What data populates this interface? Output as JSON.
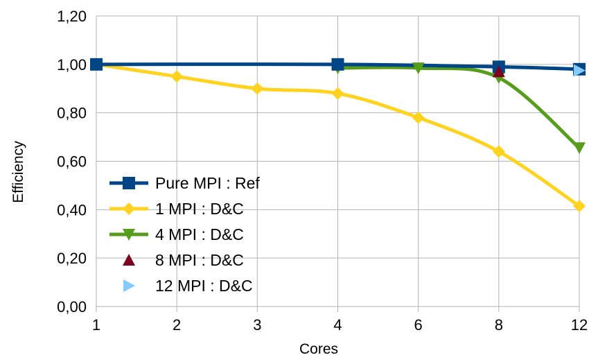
{
  "chart_data": {
    "type": "line",
    "title": "",
    "xlabel": "Cores",
    "ylabel": "Efficiency",
    "categories": [
      "1",
      "2",
      "3",
      "4",
      "6",
      "8",
      "12"
    ],
    "ylim": [
      0,
      1.2
    ],
    "yticks": [
      "0,00",
      "0,20",
      "0,40",
      "0,60",
      "0,80",
      "1,00",
      "1,20"
    ],
    "grid": {
      "horizontal": true,
      "vertical": true
    },
    "legend_position": "bottom-left",
    "series": [
      {
        "name": "Pure MPI : Ref",
        "color": "#004586",
        "marker": "square",
        "line": true,
        "values": [
          1.0,
          null,
          null,
          1.0,
          null,
          0.99,
          0.98
        ]
      },
      {
        "name": "1 MPI : D&C",
        "color": "#ffd320",
        "marker": "diamond",
        "line": true,
        "values": [
          1.0,
          0.95,
          0.9,
          0.88,
          0.78,
          0.64,
          0.415
        ]
      },
      {
        "name": "4 MPI : D&C",
        "color": "#579d1c",
        "marker": "triangle-down",
        "line": true,
        "values": [
          null,
          null,
          null,
          0.985,
          0.985,
          0.945,
          0.655
        ]
      },
      {
        "name": "8 MPI : D&C",
        "color": "#7e0021",
        "marker": "triangle-up",
        "line": false,
        "values": [
          null,
          null,
          null,
          null,
          null,
          0.97,
          null
        ]
      },
      {
        "name": "12 MPI : D&C",
        "color": "#83caff",
        "marker": "triangle-right",
        "line": false,
        "values": [
          null,
          null,
          null,
          null,
          null,
          null,
          0.975
        ]
      }
    ]
  }
}
